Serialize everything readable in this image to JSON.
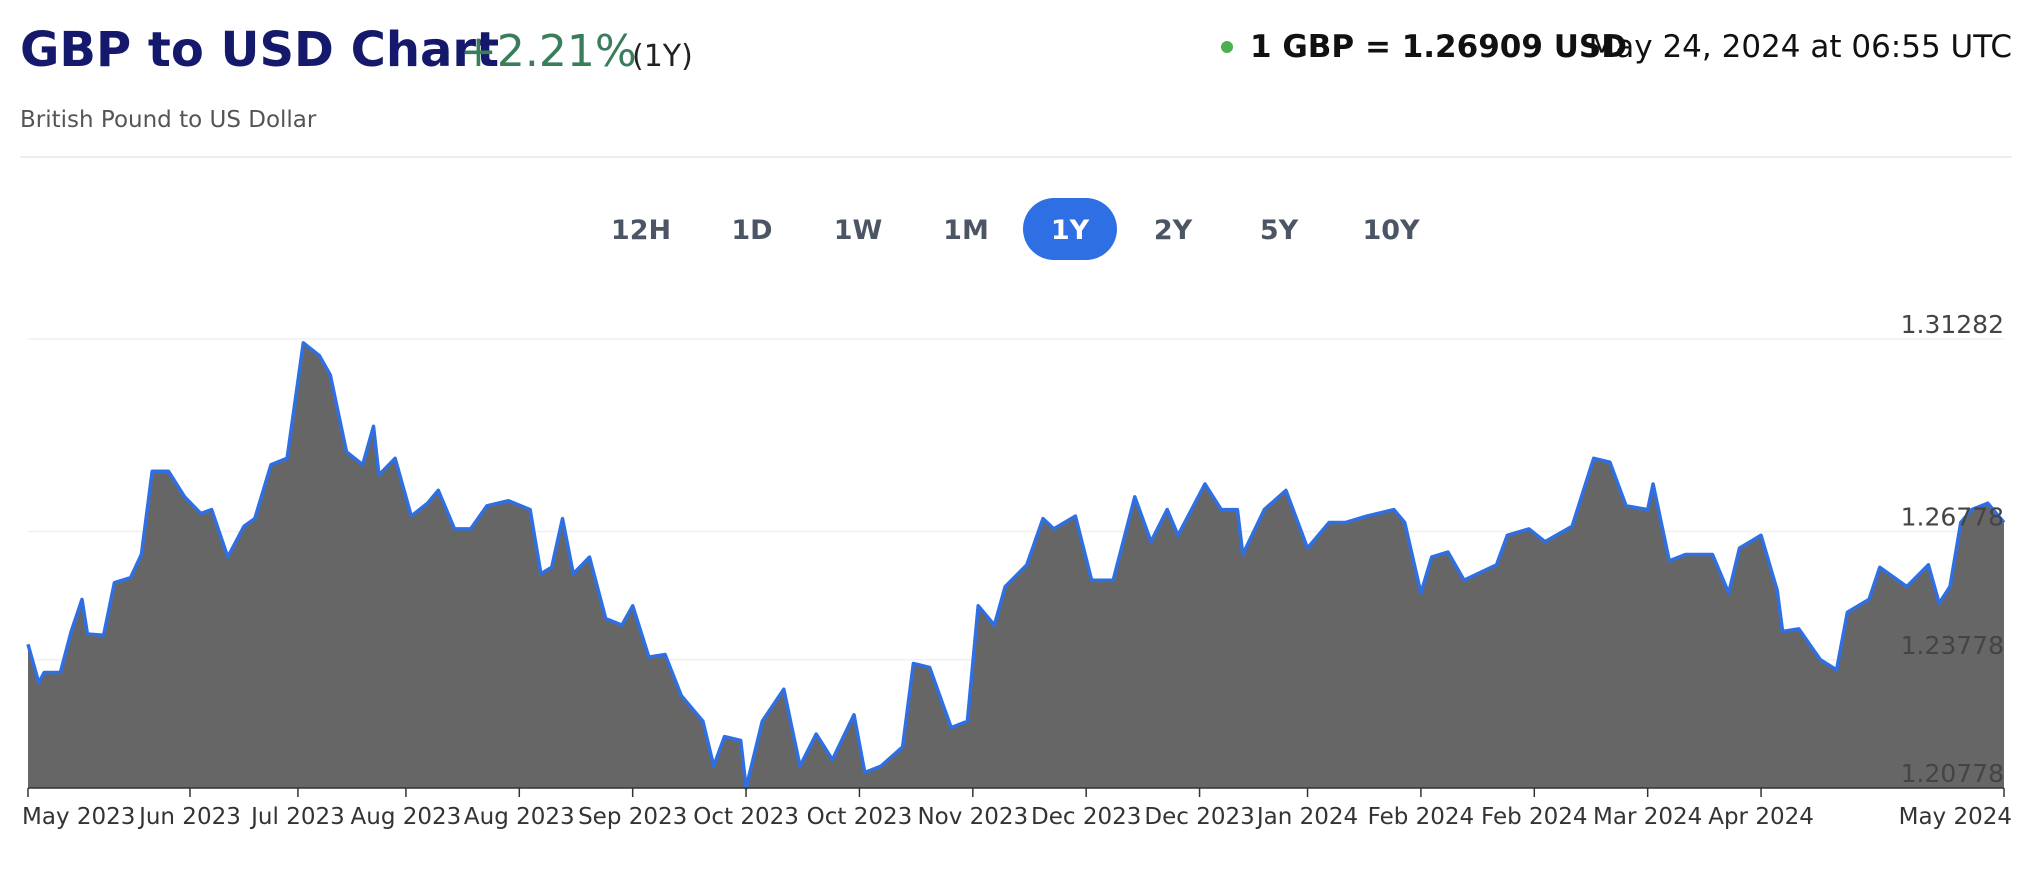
{
  "header": {
    "title": "GBP to USD Chart",
    "change": "+2.21%",
    "period": "(1Y)",
    "subtitle": "British Pound to US Dollar"
  },
  "rate": {
    "quote": "1 GBP = 1.26909 USD",
    "timestamp": "May 24, 2024 at 06:55 UTC"
  },
  "ranges": [
    "12H",
    "1D",
    "1W",
    "1M",
    "1Y",
    "2Y",
    "5Y",
    "10Y"
  ],
  "chart_data": {
    "type": "area",
    "x": [
      0,
      2,
      3,
      6,
      8,
      10,
      11,
      14,
      16,
      19,
      21,
      23,
      26,
      29,
      32,
      34,
      37,
      40,
      42,
      45,
      48,
      51,
      54,
      56,
      59,
      62,
      64,
      65,
      68,
      71,
      74,
      76,
      79,
      82,
      85,
      89,
      93,
      95,
      97,
      99,
      101,
      104,
      107,
      110,
      112,
      115,
      118,
      121,
      125,
      127,
      129,
      132,
      133,
      136,
      140,
      143,
      146,
      149,
      153,
      155,
      158,
      162,
      164,
      167,
      171,
      174,
      176,
      179,
      181,
      185,
      188,
      190,
      194,
      197,
      201,
      205,
      208,
      211,
      213,
      218,
      221,
      224,
      225,
      229,
      233,
      237,
      241,
      244,
      248,
      253,
      255,
      258,
      260,
      263,
      266,
      272,
      274,
      278,
      281,
      286,
      290,
      293,
      296,
      300,
      301,
      304,
      307,
      312,
      315,
      317,
      321,
      324,
      325,
      328,
      332,
      335,
      337,
      341,
      343,
      348,
      352,
      354,
      356,
      358,
      360,
      363,
      366
    ],
    "values": [
      1.2414,
      1.2324,
      1.2348,
      1.2348,
      1.2444,
      1.2519,
      1.2438,
      1.2435,
      1.2558,
      1.257,
      1.2624,
      1.2819,
      1.2819,
      1.2759,
      1.272,
      1.2729,
      1.2618,
      1.269,
      1.2708,
      1.2834,
      1.2849,
      1.3119,
      1.3089,
      1.3044,
      1.2864,
      1.2834,
      1.2924,
      1.281,
      1.2849,
      1.2714,
      1.2744,
      1.2774,
      1.2684,
      1.2684,
      1.2738,
      1.275,
      1.2729,
      1.2579,
      1.2594,
      1.2708,
      1.2579,
      1.2618,
      1.2474,
      1.2459,
      1.2504,
      1.2384,
      1.239,
      1.2294,
      1.2234,
      1.2129,
      1.2198,
      1.2189,
      1.2078,
      1.2234,
      1.2309,
      1.2129,
      1.2204,
      1.2144,
      1.2249,
      1.2114,
      1.2129,
      1.2174,
      1.2369,
      1.236,
      1.2219,
      1.2234,
      1.2504,
      1.2459,
      1.2549,
      1.26,
      1.2708,
      1.2684,
      1.2714,
      1.2564,
      1.2564,
      1.2759,
      1.2654,
      1.2729,
      1.2669,
      1.2789,
      1.2729,
      1.2729,
      1.2624,
      1.2729,
      1.2774,
      1.2639,
      1.2699,
      1.2699,
      1.2714,
      1.2729,
      1.2699,
      1.2534,
      1.2618,
      1.263,
      1.2564,
      1.26,
      1.2669,
      1.2684,
      1.2654,
      1.269,
      1.2849,
      1.284,
      1.2738,
      1.2729,
      1.2789,
      1.2609,
      1.2624,
      1.2624,
      1.2534,
      1.2639,
      1.2669,
      1.254,
      1.2444,
      1.245,
      1.2378,
      1.2354,
      1.2489,
      1.2519,
      1.2594,
      1.2549,
      1.26,
      1.251,
      1.2549,
      1.2699,
      1.2729,
      1.2744,
      1.2699
    ],
    "line_color": "#2f6fe4",
    "fill_color": "#666666",
    "xlim": [
      0,
      366
    ],
    "xticks": [
      {
        "value": 0,
        "label": "May 2023"
      },
      {
        "value": 30,
        "label": "Jun 2023"
      },
      {
        "value": 50,
        "label": "Jul 2023"
      },
      {
        "value": 70,
        "label": "Aug 2023"
      },
      {
        "value": 91,
        "label": "Aug 2023"
      },
      {
        "value": 112,
        "label": "Sep 2023"
      },
      {
        "value": 133,
        "label": "Oct 2023"
      },
      {
        "value": 154,
        "label": "Oct 2023"
      },
      {
        "value": 175,
        "label": "Nov 2023"
      },
      {
        "value": 196,
        "label": "Dec 2023"
      },
      {
        "value": 217,
        "label": "Dec 2023"
      },
      {
        "value": 237,
        "label": "Jan 2024"
      },
      {
        "value": 258,
        "label": "Feb 2024"
      },
      {
        "value": 279,
        "label": "Feb 2024"
      },
      {
        "value": 300,
        "label": "Mar 2024"
      },
      {
        "value": 321,
        "label": "Apr 2024"
      },
      {
        "value": 366,
        "label": "May 2024"
      }
    ],
    "ylim": [
      1.20778,
      1.31282
    ],
    "yticks": [
      1.20778,
      1.23778,
      1.26778,
      1.31282
    ],
    "grid": true
  }
}
